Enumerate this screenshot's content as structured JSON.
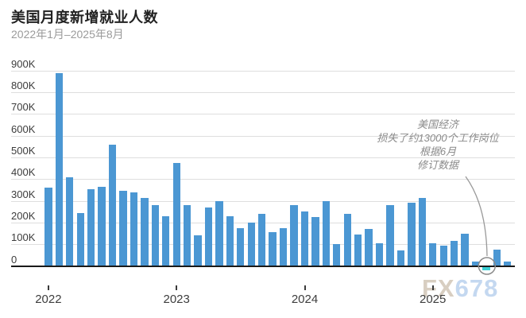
{
  "header": {
    "title": "美国月度新增就业人数",
    "subtitle": "2022年1月–2025年8月"
  },
  "y_axis": {
    "labels": [
      "0",
      "100K",
      "200K",
      "300K",
      "400K",
      "500K",
      "600K",
      "700K",
      "800K",
      "900K"
    ]
  },
  "x_axis": {
    "ticks": [
      {
        "label": "2022",
        "month_index": 0
      },
      {
        "label": "2023",
        "month_index": 12
      },
      {
        "label": "2024",
        "month_index": 24
      },
      {
        "label": "2025",
        "month_index": 36
      }
    ]
  },
  "annotation": {
    "lines": [
      "美国经济",
      "损失了约13000个工作岗位",
      "根据6月",
      "修订数据"
    ],
    "points_to_month": "2025-06"
  },
  "watermark": {
    "prefix": "FX",
    "suffix": "678"
  },
  "colors": {
    "bar": "#4B97D3",
    "negative_bar": "#3BCFD4",
    "grid": "#DEDEDE",
    "baseline": "#1A1A1A",
    "title": "#222222",
    "subtitle": "#9B9B9B",
    "axis_label": "#3C3C3C",
    "annotation": "#8A8A8A",
    "highlight_circle": "#8A8A8A",
    "watermark_fx": "#D8CEC1",
    "watermark_numbers": "#C4D8F0"
  },
  "chart_data": {
    "type": "bar",
    "title": "美国月度新增就业人数",
    "subtitle": "2022年1月–2025年8月",
    "unit": "thousands of jobs",
    "ylim": [
      -13,
      900
    ],
    "grid": true,
    "y_tick_labels": [
      "0",
      "100K",
      "200K",
      "300K",
      "400K",
      "500K",
      "600K",
      "700K",
      "800K",
      "900K"
    ],
    "x": [
      "2022-01",
      "2022-02",
      "2022-03",
      "2022-04",
      "2022-05",
      "2022-06",
      "2022-07",
      "2022-08",
      "2022-09",
      "2022-10",
      "2022-11",
      "2022-12",
      "2023-01",
      "2023-02",
      "2023-03",
      "2023-04",
      "2023-05",
      "2023-06",
      "2023-07",
      "2023-08",
      "2023-09",
      "2023-10",
      "2023-11",
      "2023-12",
      "2024-01",
      "2024-02",
      "2024-03",
      "2024-04",
      "2024-05",
      "2024-06",
      "2024-07",
      "2024-08",
      "2024-09",
      "2024-10",
      "2024-11",
      "2024-12",
      "2025-01",
      "2025-02",
      "2025-03",
      "2025-04",
      "2025-05",
      "2025-06",
      "2025-07",
      "2025-08"
    ],
    "values": [
      360,
      890,
      410,
      245,
      355,
      365,
      560,
      345,
      340,
      315,
      280,
      230,
      475,
      280,
      140,
      270,
      300,
      230,
      175,
      200,
      240,
      155,
      175,
      280,
      250,
      225,
      300,
      100,
      240,
      145,
      170,
      105,
      280,
      70,
      290,
      315,
      105,
      95,
      115,
      150,
      20,
      -13,
      75,
      22
    ],
    "highlight": {
      "month": "2025-06",
      "value": -13,
      "style": "teal bar below zero, circled, linked to annotation"
    }
  }
}
